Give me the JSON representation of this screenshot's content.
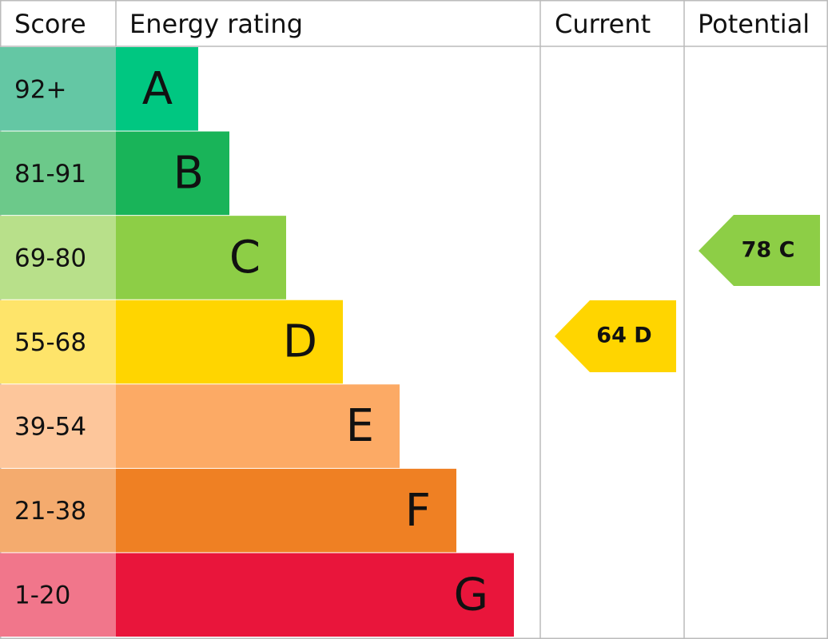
{
  "header": {
    "score": "Score",
    "rating": "Energy rating",
    "current": "Current",
    "potential": "Potential"
  },
  "bands": [
    {
      "score": "92+",
      "letter": "A"
    },
    {
      "score": "81-91",
      "letter": "B"
    },
    {
      "score": "69-80",
      "letter": "C"
    },
    {
      "score": "55-68",
      "letter": "D"
    },
    {
      "score": "39-54",
      "letter": "E"
    },
    {
      "score": "21-38",
      "letter": "F"
    },
    {
      "score": "1-20",
      "letter": "G"
    }
  ],
  "current": "64 D",
  "potential": "78 C"
}
